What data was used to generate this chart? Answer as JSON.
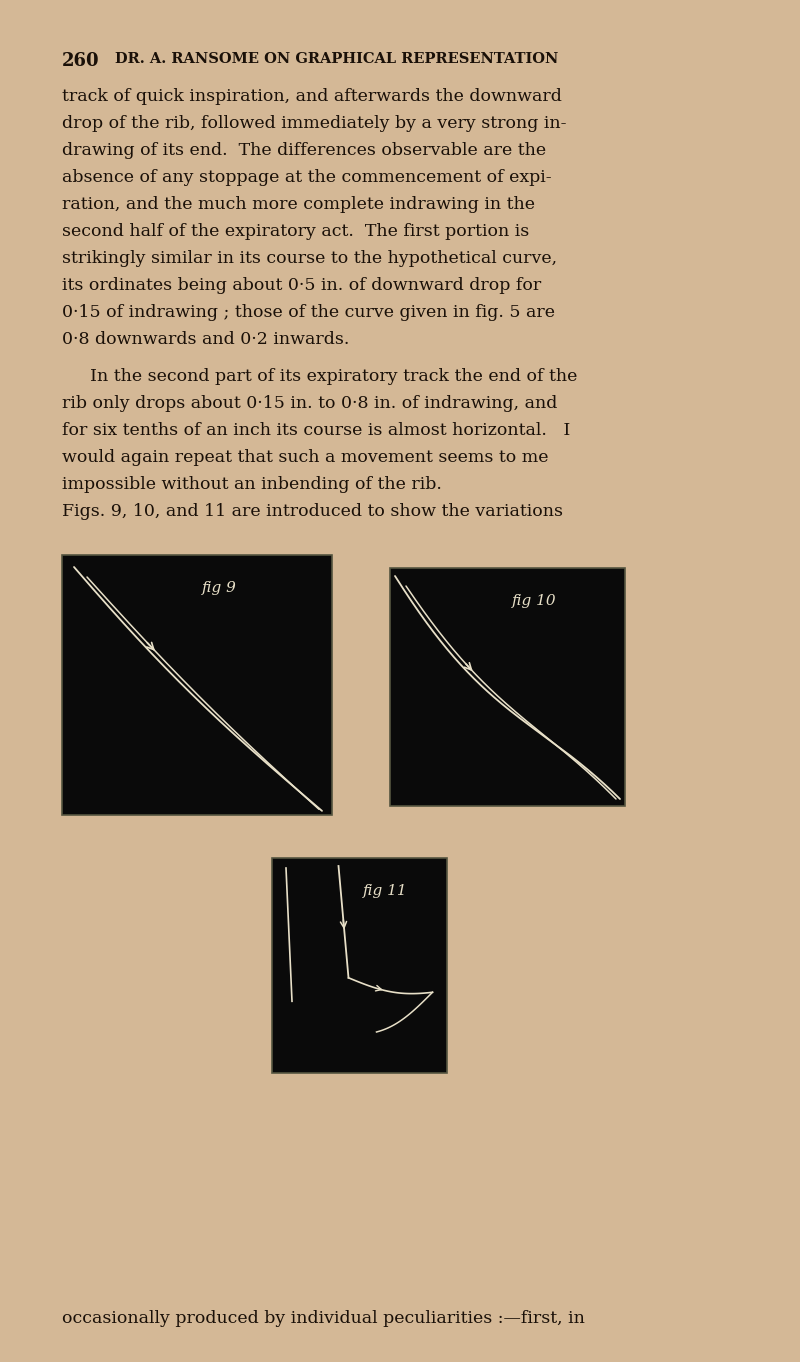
{
  "background_color": "#d4b896",
  "text_color": "#1a1008",
  "body_text_lines": [
    "track of quick inspiration, and afterwards the downward",
    "drop of the rib, followed immediately by a very strong in-",
    "drawing of its end.  The differences observable are the",
    "absence of any stoppage at the commencement of expi-",
    "ration, and the much more complete indrawing in the",
    "second half of the expiratory act.  The first portion is",
    "strikingly similar in its course to the hypothetical curve,",
    "its ordinates being about 0·5 in. of downward drop for",
    "0·15 of indrawing ; those of the curve given in fig. 5 are",
    "0·8 downwards and 0·2 inwards."
  ],
  "body_text2_lines": [
    "In the second part of its expiratory track the end of the",
    "rib only drops about 0·15 in. to 0·8 in. of indrawing, and",
    "for six tenths of an inch its course is almost horizontal.   I",
    "would again repeat that such a movement seems to me",
    "impossible without an inbending of the rib.",
    "Figs. 9, 10, and 11 are introduced to show the variations"
  ],
  "footer_text": "occasionally produced by individual peculiarities :—first, in",
  "fig9_label": "fig 9",
  "fig10_label": "fig 10",
  "fig11_label": "fig 11",
  "fig_bg": "#0a0a0a",
  "fig_line_color": "#e8e0c8",
  "fig_border_color": "#555540"
}
